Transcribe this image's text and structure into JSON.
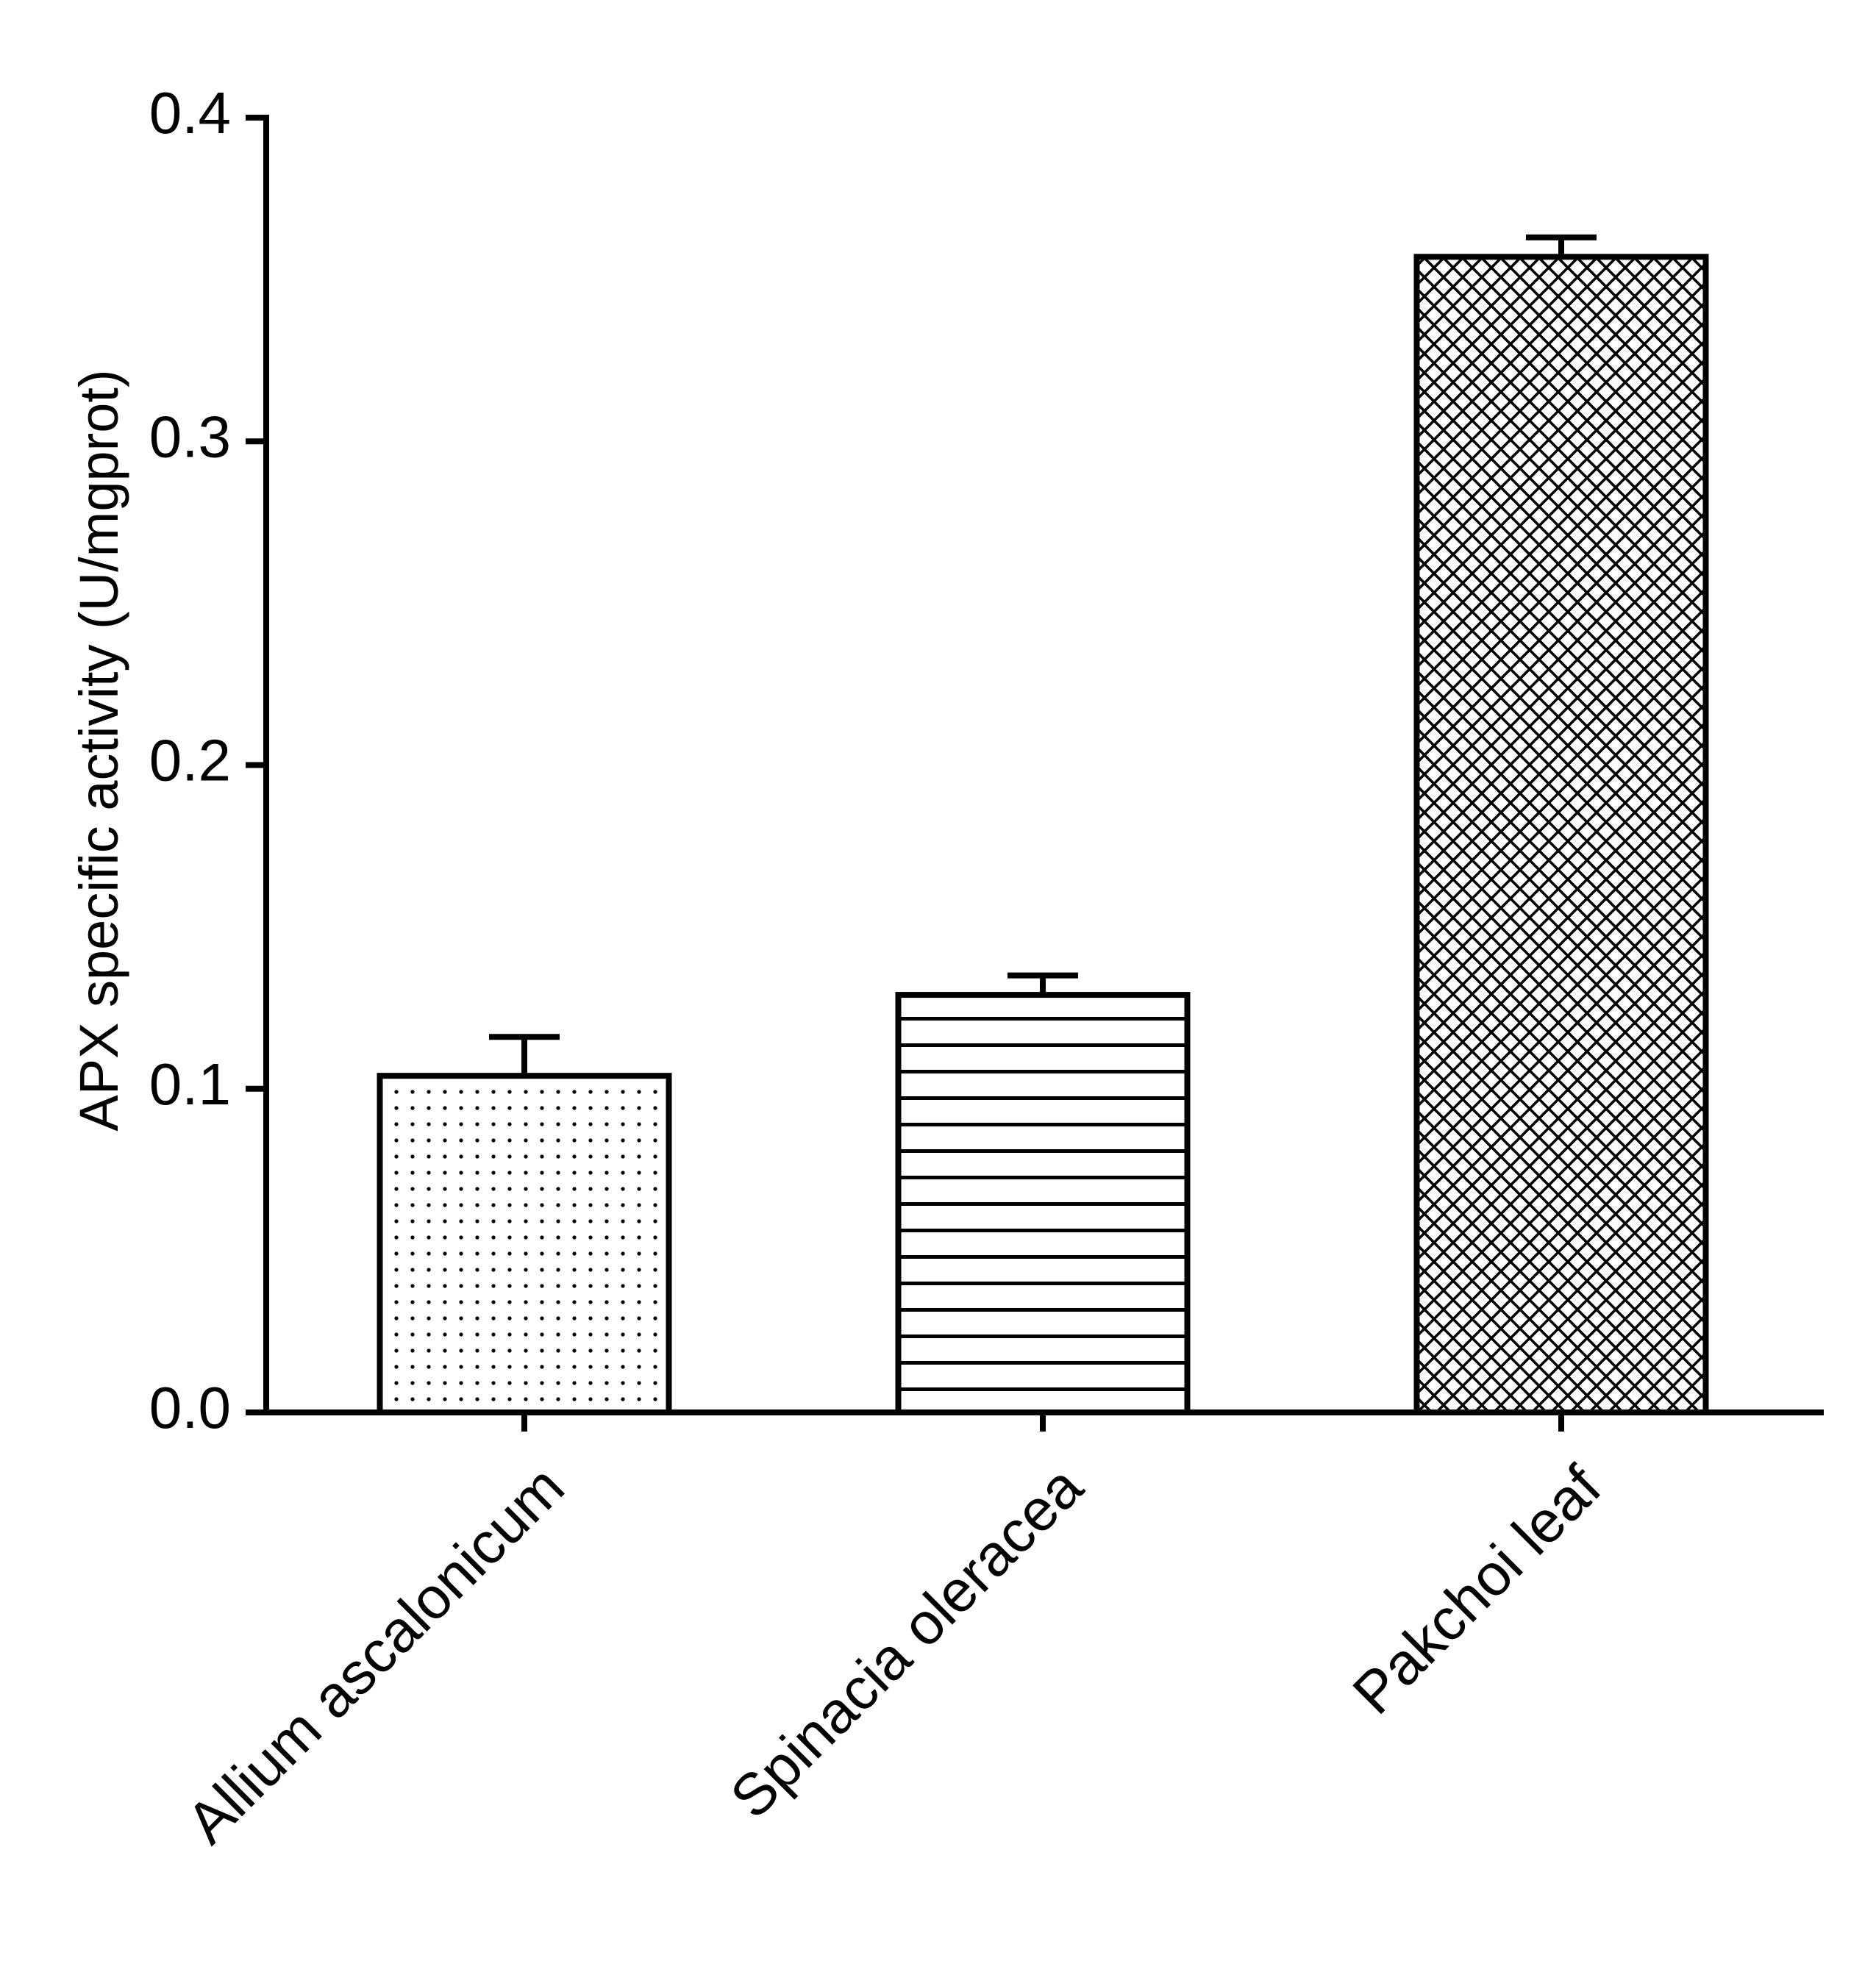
{
  "chart_data": {
    "type": "bar",
    "title": "",
    "xlabel": "",
    "ylabel": "APX specific activity (U/mgprot)",
    "ylim": [
      0,
      0.4
    ],
    "yticks": [
      0.0,
      0.1,
      0.2,
      0.3,
      0.4
    ],
    "ytick_labels": [
      "0.0",
      "0.1",
      "0.2",
      "0.3",
      "0.4"
    ],
    "categories": [
      "Allium ascalonicum",
      "Spinacia oleracea",
      "Pakchoi leaf"
    ],
    "values": [
      0.104,
      0.129,
      0.357
    ],
    "errors": [
      0.012,
      0.006,
      0.006
    ],
    "patterns": [
      "dots",
      "horizontal-lines",
      "crosshatch"
    ],
    "grid": false,
    "legend": "none"
  },
  "colors": {
    "ink": "#000000",
    "bar_fill": "#ffffff"
  }
}
